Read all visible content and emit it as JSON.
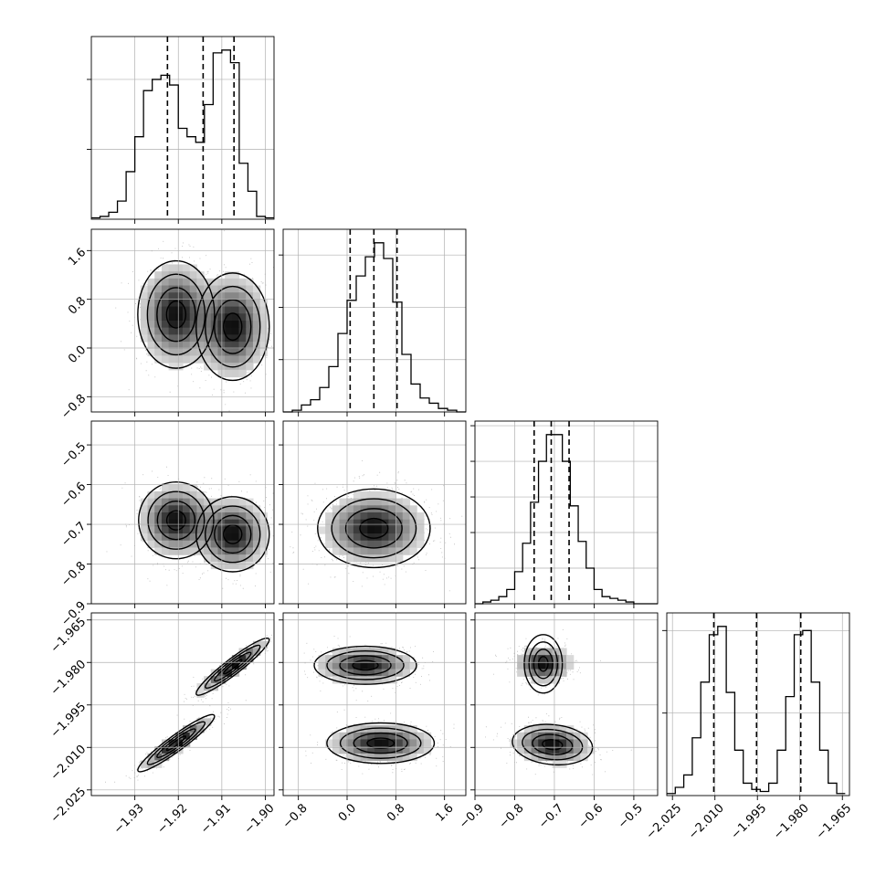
{
  "chart_data": {
    "type": "corner",
    "description_parameters": 4,
    "axes": [
      {
        "id": "p0",
        "range": [
          -1.94,
          -1.898
        ],
        "ticks": [
          -1.93,
          -1.92,
          -1.91,
          -1.9
        ],
        "tick_labels": [
          "−1.93",
          "−1.92",
          "−1.91",
          "−1.90"
        ]
      },
      {
        "id": "p1",
        "range": [
          -1.05,
          1.95
        ],
        "ticks": [
          -0.8,
          0.0,
          0.8,
          1.6
        ],
        "tick_labels": [
          "−0.8",
          "0.0",
          "0.8",
          "1.6"
        ]
      },
      {
        "id": "p2",
        "range": [
          -0.9,
          -0.44
        ],
        "ticks": [
          -0.9,
          -0.8,
          -0.7,
          -0.6,
          -0.5
        ],
        "tick_labels": [
          "−0.9",
          "−0.8",
          "−0.7",
          "−0.6",
          "−0.5"
        ]
      },
      {
        "id": "p3",
        "range": [
          -2.027,
          -1.9625
        ],
        "ticks": [
          -2.025,
          -2.01,
          -1.995,
          -1.98,
          -1.965
        ],
        "tick_labels": [
          "−2.025",
          "−2.010",
          "−1.995",
          "−1.980",
          "−1.965"
        ]
      }
    ],
    "histograms": [
      {
        "param": 0,
        "bin_edges": [
          -1.94,
          -1.938,
          -1.936,
          -1.934,
          -1.932,
          -1.93,
          -1.928,
          -1.926,
          -1.924,
          -1.922,
          -1.92,
          -1.918,
          -1.916,
          -1.914,
          -1.912,
          -1.91,
          -1.908,
          -1.906,
          -1.904,
          -1.902,
          -1.9,
          -1.898
        ],
        "counts": [
          0.01,
          0.02,
          0.05,
          0.13,
          0.34,
          0.59,
          0.92,
          1.0,
          1.03,
          0.96,
          0.65,
          0.59,
          0.55,
          0.82,
          1.19,
          1.21,
          1.12,
          0.4,
          0.2,
          0.02,
          0.01
        ],
        "quantiles": [
          -1.9225,
          -1.9143,
          -1.9072
        ],
        "grid_y": [
          0.5,
          1.0
        ]
      },
      {
        "param": 1,
        "bin_edges": [
          -1.05,
          -0.9,
          -0.75,
          -0.6,
          -0.45,
          -0.3,
          -0.15,
          0.0,
          0.15,
          0.3,
          0.45,
          0.6,
          0.75,
          0.9,
          1.05,
          1.2,
          1.35,
          1.5,
          1.65,
          1.8,
          1.95
        ],
        "counts": [
          0.0,
          0.01,
          0.04,
          0.07,
          0.14,
          0.26,
          0.45,
          0.64,
          0.78,
          0.89,
          0.97,
          0.88,
          0.63,
          0.33,
          0.16,
          0.08,
          0.05,
          0.02,
          0.01,
          0.0
        ],
        "quantiles": [
          0.05,
          0.44,
          0.82
        ],
        "grid_y": [
          0.3,
          0.6,
          0.9
        ]
      },
      {
        "param": 2,
        "bin_edges": [
          -0.9,
          -0.88,
          -0.86,
          -0.84,
          -0.82,
          -0.8,
          -0.78,
          -0.76,
          -0.74,
          -0.72,
          -0.7,
          -0.68,
          -0.66,
          -0.64,
          -0.62,
          -0.6,
          -0.58,
          -0.56,
          -0.54,
          -0.52,
          -0.5,
          -0.48,
          -0.46,
          -0.44
        ],
        "counts": [
          0.0,
          0.01,
          0.02,
          0.04,
          0.08,
          0.18,
          0.34,
          0.57,
          0.8,
          0.95,
          0.95,
          0.8,
          0.55,
          0.35,
          0.2,
          0.08,
          0.04,
          0.03,
          0.02,
          0.01,
          0.0,
          0.0,
          0.0
        ],
        "quantiles": [
          -0.751,
          -0.708,
          -0.663
        ],
        "grid_y": [
          0.2,
          0.4,
          0.6,
          0.8,
          1.0
        ]
      },
      {
        "param": 3,
        "bin_edges": [
          -2.027,
          -2.024,
          -2.021,
          -2.018,
          -2.015,
          -2.012,
          -2.009,
          -2.006,
          -2.003,
          -2.0,
          -1.997,
          -1.994,
          -1.991,
          -1.988,
          -1.985,
          -1.982,
          -1.979,
          -1.976,
          -1.973,
          -1.97,
          -1.967,
          -1.964
        ],
        "counts": [
          0.01,
          0.04,
          0.1,
          0.28,
          0.55,
          0.78,
          0.82,
          0.5,
          0.22,
          0.06,
          0.03,
          0.02,
          0.06,
          0.22,
          0.48,
          0.78,
          0.8,
          0.55,
          0.22,
          0.06,
          0.01
        ],
        "quantiles": [
          -2.0104,
          -1.9953,
          -1.9797
        ],
        "grid_y": [
          0.4,
          0.8
        ]
      }
    ],
    "joint_2d": [
      {
        "x": 0,
        "y": 1,
        "modes": [
          {
            "cx": -1.9205,
            "cy": 0.55,
            "sx": 0.0042,
            "sy": 0.42,
            "rho": 0.0
          },
          {
            "cx": -1.9075,
            "cy": 0.35,
            "sx": 0.004,
            "sy": 0.42,
            "rho": 0.0
          }
        ]
      },
      {
        "x": 0,
        "y": 2,
        "modes": [
          {
            "cx": -1.9205,
            "cy": -0.69,
            "sx": 0.0042,
            "sy": 0.045,
            "rho": 0.0
          },
          {
            "cx": -1.9075,
            "cy": -0.725,
            "sx": 0.004,
            "sy": 0.045,
            "rho": 0.0
          }
        ]
      },
      {
        "x": 0,
        "y": 3,
        "modes": [
          {
            "cx": -1.9205,
            "cy": -2.0085,
            "sx": 0.0042,
            "sy": 0.0048,
            "rho": 0.94
          },
          {
            "cx": -1.9075,
            "cy": -1.9815,
            "sx": 0.004,
            "sy": 0.0048,
            "rho": 0.94
          }
        ]
      },
      {
        "x": 1,
        "y": 2,
        "modes": [
          {
            "cx": 0.44,
            "cy": -0.71,
            "sx": 0.42,
            "sy": 0.045,
            "rho": 0.0
          }
        ]
      },
      {
        "x": 1,
        "y": 3,
        "modes": [
          {
            "cx": 0.3,
            "cy": -1.981,
            "sx": 0.4,
            "sy": 0.0032,
            "rho": 0.0
          },
          {
            "cx": 0.55,
            "cy": -2.0085,
            "sx": 0.42,
            "sy": 0.0034,
            "rho": 0.0
          }
        ]
      },
      {
        "x": 2,
        "y": 3,
        "modes": [
          {
            "cx": -0.728,
            "cy": -1.9805,
            "sx": 0.035,
            "sy": 0.0032,
            "rho": 0.0
          },
          {
            "cx": -0.705,
            "cy": -2.009,
            "sx": 0.048,
            "sy": 0.0034,
            "rho": -0.15
          }
        ]
      }
    ],
    "contour_levels_sigma": [
      0.5,
      1.0,
      1.5,
      2.0
    ],
    "colors": {
      "line": "#000000",
      "scatter": "#707070",
      "grid": "#b0b0b0"
    }
  }
}
